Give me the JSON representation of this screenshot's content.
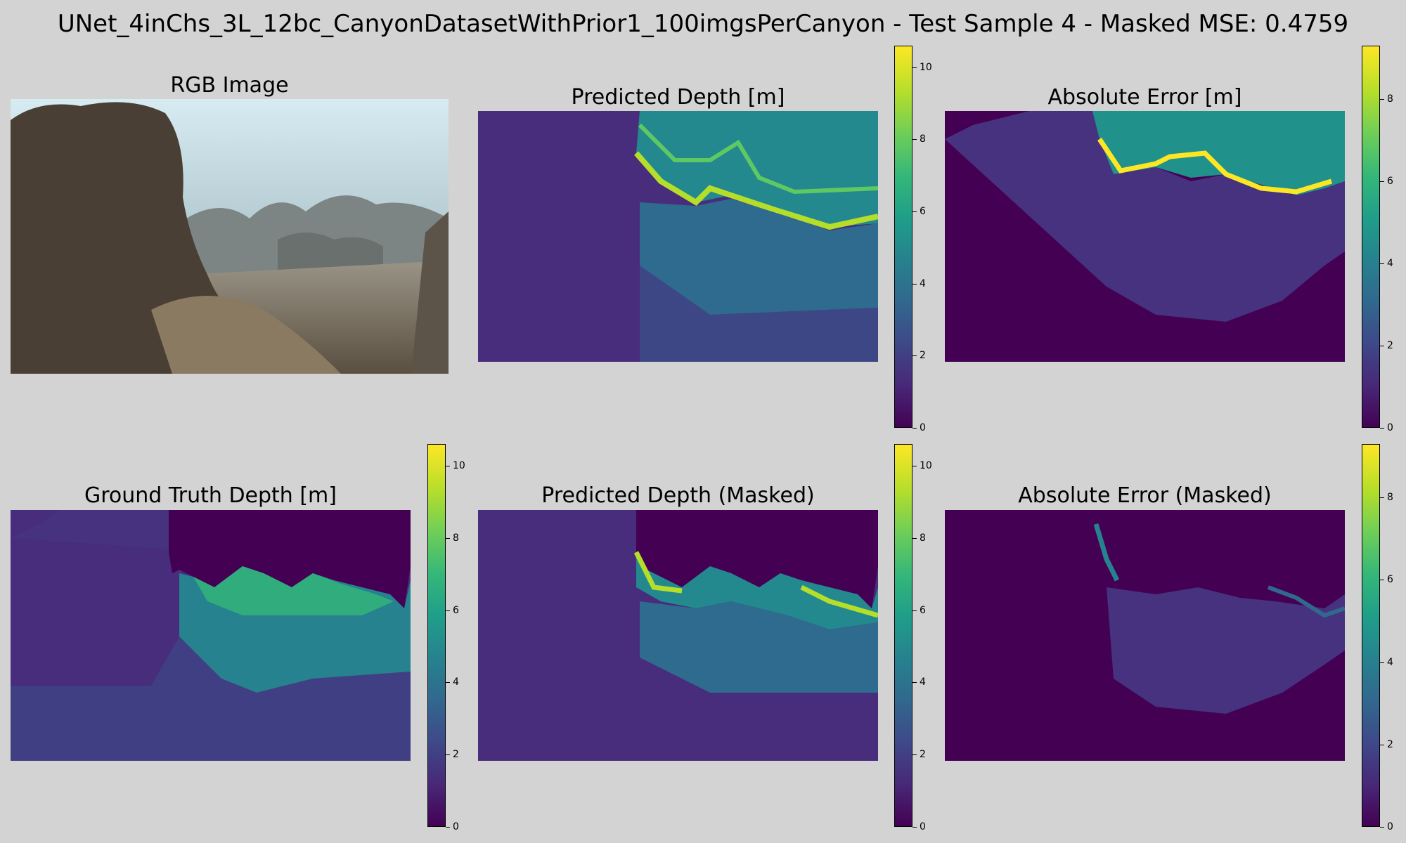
{
  "figure": {
    "title": "UNet_4inChs_3L_12bc_CanyonDatasetWithPrior1_100imgsPerCanyon - Test Sample 4 - Masked MSE: 0.4759"
  },
  "panels": {
    "rgb": {
      "title": "RGB Image"
    },
    "pred": {
      "title": "Predicted Depth [m]"
    },
    "err": {
      "title": "Absolute Error [m]"
    },
    "gt": {
      "title": "Ground Truth Depth [m]"
    },
    "pred_masked": {
      "title": "Predicted Depth (Masked)"
    },
    "err_masked": {
      "title": "Absolute Error (Masked)"
    }
  },
  "colorbars": {
    "depth": {
      "ticks": [
        "0",
        "2",
        "4",
        "6",
        "8",
        "10"
      ],
      "max": 10.6
    },
    "error": {
      "ticks": [
        "0",
        "2",
        "4",
        "6",
        "8"
      ],
      "max": 9.3
    }
  },
  "colormap": "viridis"
}
